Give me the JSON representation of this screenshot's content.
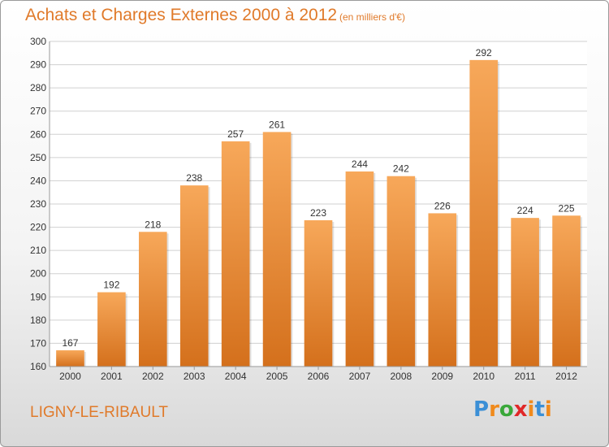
{
  "header": {
    "title": "Achats et Charges Externes 2000 à 2012",
    "subtitle": "(en milliers d'€)"
  },
  "footer": {
    "commune": "LIGNY-LE-RIBAULT",
    "logo_letters": [
      "P",
      "r",
      "o",
      "x",
      "i",
      "t",
      "i"
    ],
    "logo_colors": [
      "#3b8fd6",
      "#f08a1c",
      "#3aa83a",
      "#e02828",
      "#f08a1c",
      "#3b8fd6",
      "#f08a1c"
    ]
  },
  "colors": {
    "bar_top": "#f7a85a",
    "bar_bottom": "#d4701c",
    "grid": "#d0d0d0",
    "axis_text": "#333333",
    "accent": "#e07a2a"
  },
  "chart_data": {
    "type": "bar",
    "title": "Achats et Charges Externes 2000 à 2012",
    "subtitle": "(en milliers d'€)",
    "categories": [
      "2000",
      "2001",
      "2002",
      "2003",
      "2004",
      "2005",
      "2006",
      "2007",
      "2008",
      "2009",
      "2010",
      "2011",
      "2012"
    ],
    "values": [
      167,
      192,
      218,
      238,
      257,
      261,
      223,
      244,
      242,
      226,
      292,
      224,
      225
    ],
    "ylim": [
      160,
      300
    ],
    "yticks": [
      160,
      170,
      180,
      190,
      200,
      210,
      220,
      230,
      240,
      250,
      260,
      270,
      280,
      290,
      300
    ],
    "grid": true,
    "data_labels": true
  }
}
